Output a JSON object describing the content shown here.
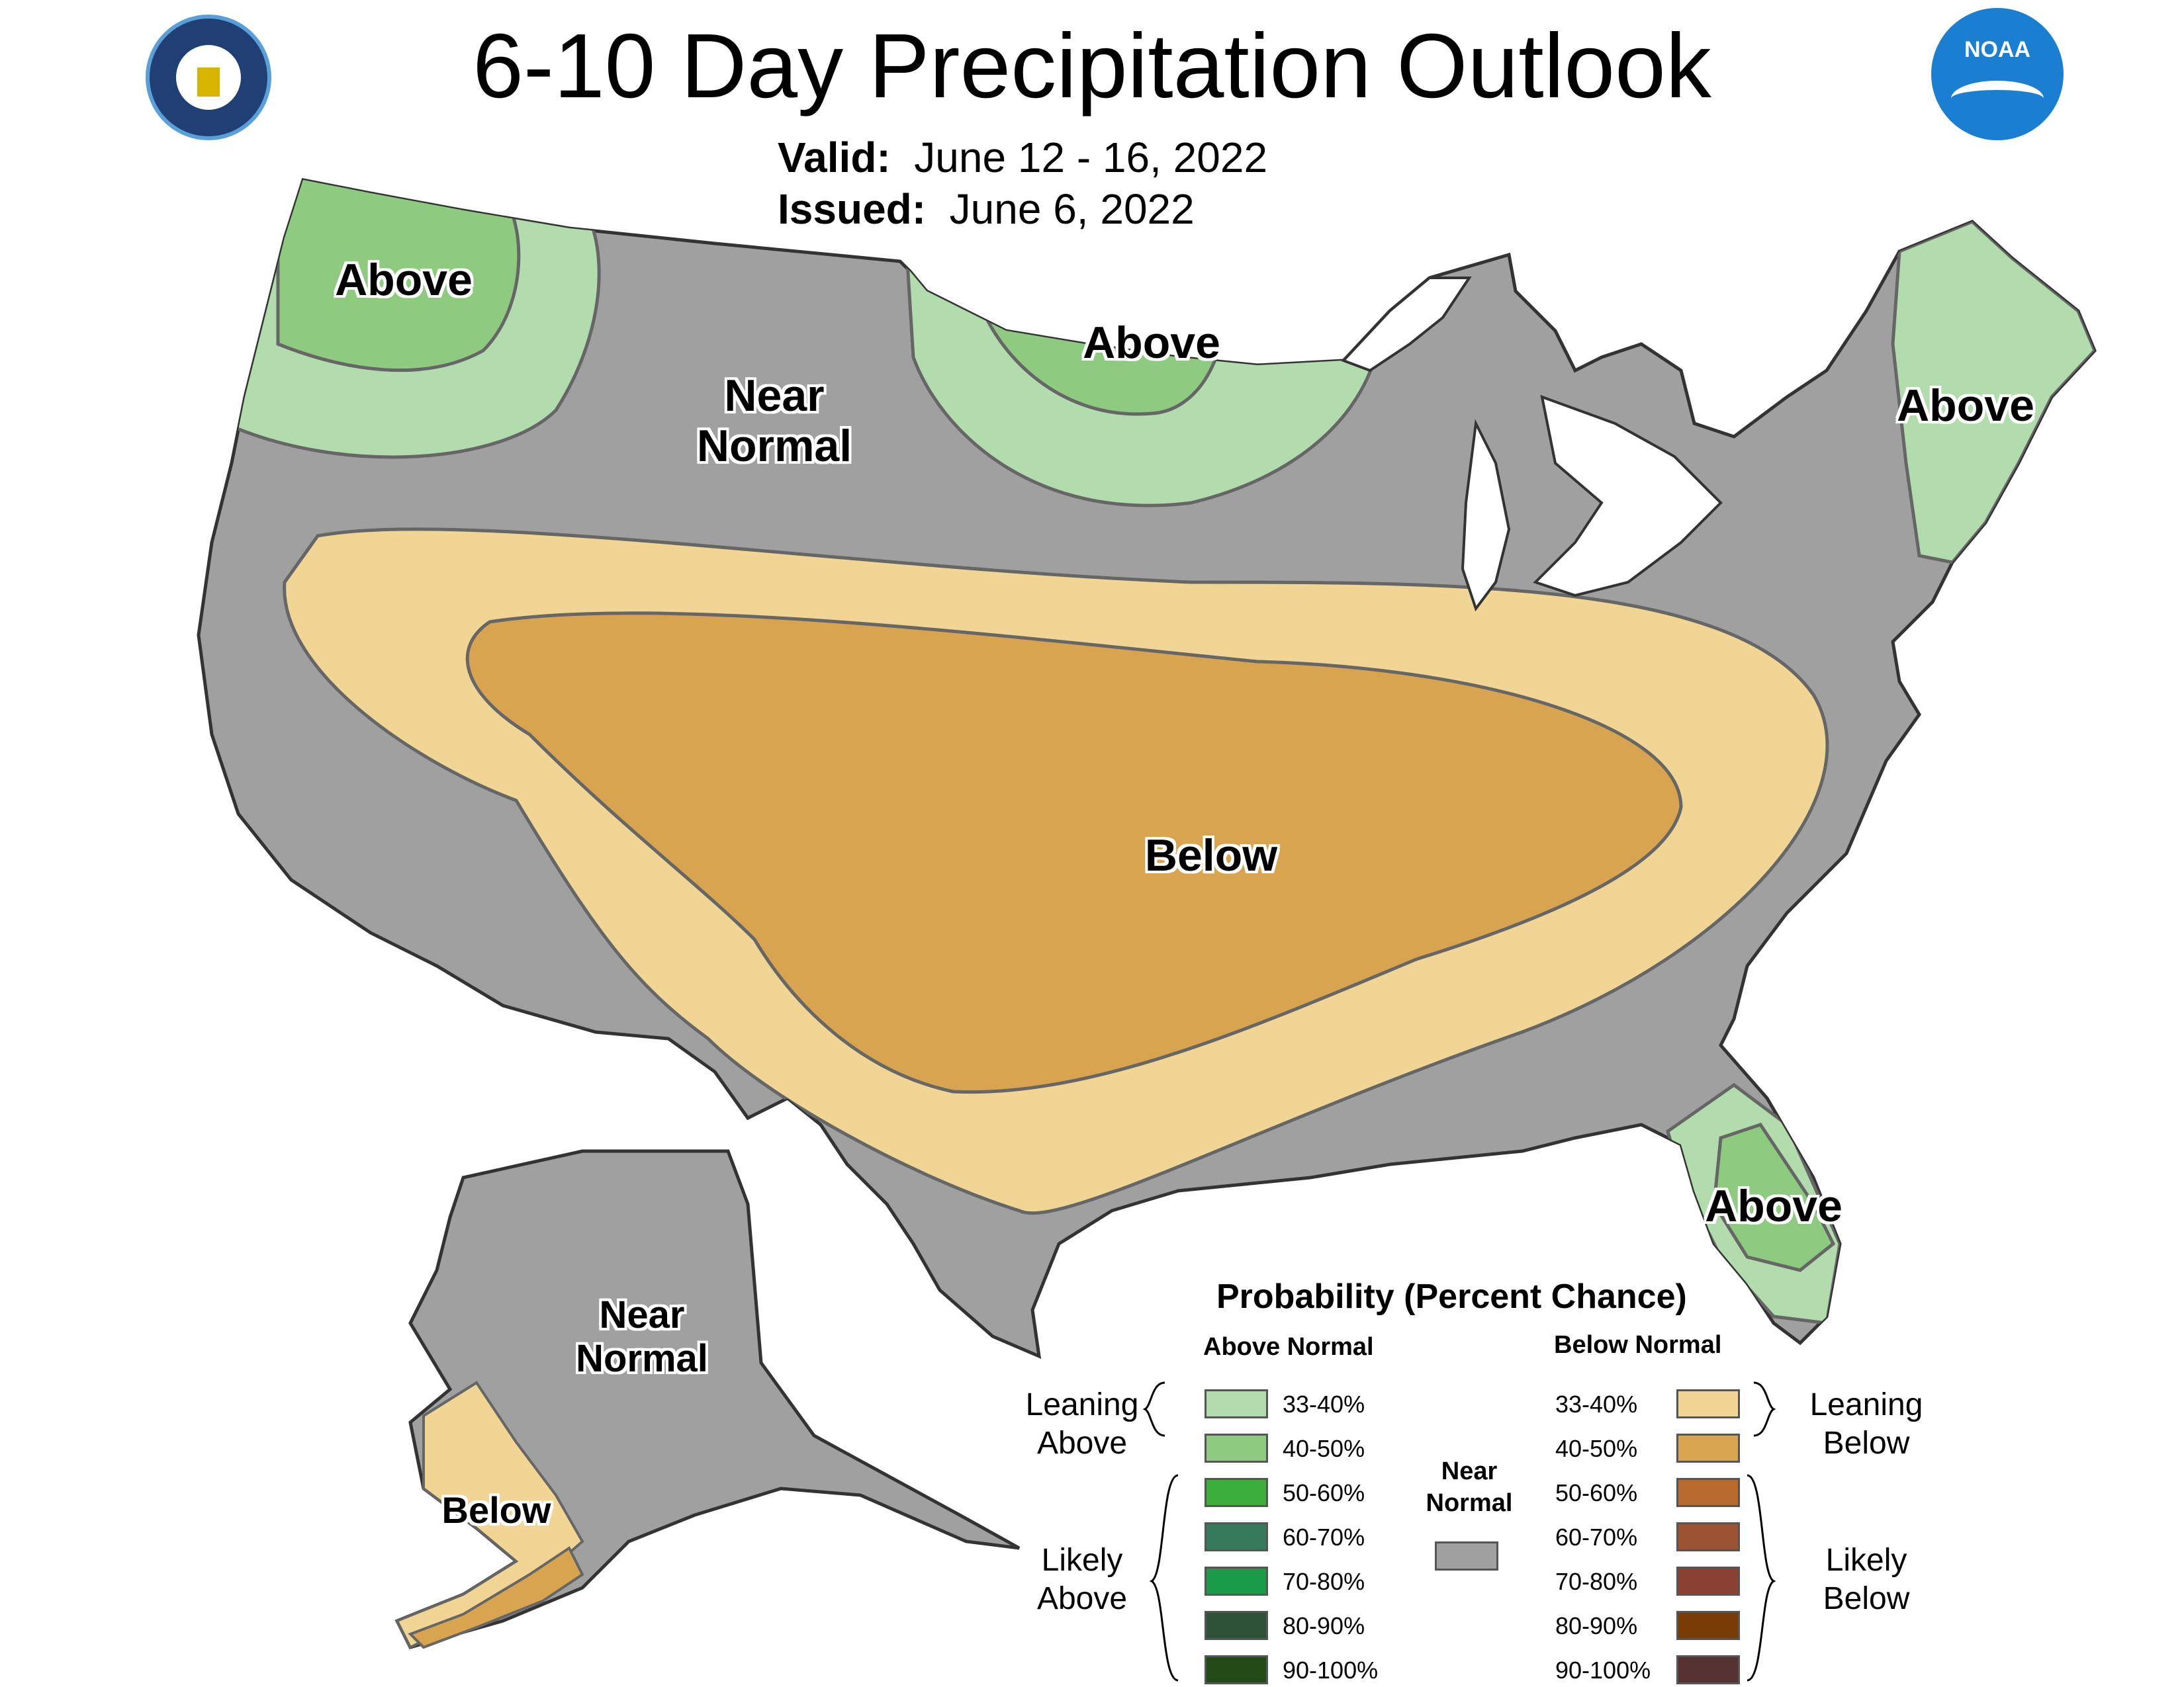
{
  "header": {
    "title": "6-10 Day Precipitation Outlook",
    "valid_label": "Valid:",
    "valid_value": "June 12 - 16, 2022",
    "issued_label": "Issued:",
    "issued_value": "June 6, 2022"
  },
  "logos": {
    "left": "department-of-commerce-seal",
    "right": "noaa-logo",
    "right_text": "NOAA"
  },
  "map": {
    "labels": {
      "pacific_nw": "Above",
      "near_normal_west": "Near\nNormal",
      "upper_midwest": "Above",
      "new_england": "Above",
      "central_us": "Below",
      "florida": "Above",
      "alaska_near_normal": "Near\nNormal",
      "alaska_below": "Below"
    },
    "colors": {
      "near_normal": "#a0a0a0",
      "above_33_40": "#b3dcae",
      "above_40_50": "#8ecb80",
      "below_33_40": "#f0d595",
      "below_40_50": "#d9a44f",
      "no_forecast": "#ffffff",
      "border": "#333333"
    }
  },
  "legend": {
    "title": "Probability (Percent Chance)",
    "above_header": "Above Normal",
    "below_header": "Below Normal",
    "near_normal": "Near\nNormal",
    "near_normal_color": "#a0a0a0",
    "leaning_above": "Leaning\nAbove",
    "likely_above": "Likely\nAbove",
    "leaning_below": "Leaning\nBelow",
    "likely_below": "Likely\nBelow",
    "above": [
      {
        "pct": "33-40%",
        "color": "#b3dcae"
      },
      {
        "pct": "40-50%",
        "color": "#8ecb80"
      },
      {
        "pct": "50-60%",
        "color": "#3cae3c"
      },
      {
        "pct": "60-70%",
        "color": "#357b5a"
      },
      {
        "pct": "70-80%",
        "color": "#1a9b48"
      },
      {
        "pct": "80-90%",
        "color": "#2b5237"
      },
      {
        "pct": "90-100%",
        "color": "#234a16"
      }
    ],
    "below": [
      {
        "pct": "33-40%",
        "color": "#f0d595"
      },
      {
        "pct": "40-50%",
        "color": "#d9a44f"
      },
      {
        "pct": "50-60%",
        "color": "#b8692e"
      },
      {
        "pct": "60-70%",
        "color": "#9b5230"
      },
      {
        "pct": "70-80%",
        "color": "#8b4034"
      },
      {
        "pct": "80-90%",
        "color": "#7a3c05"
      },
      {
        "pct": "90-100%",
        "color": "#553131"
      }
    ]
  }
}
